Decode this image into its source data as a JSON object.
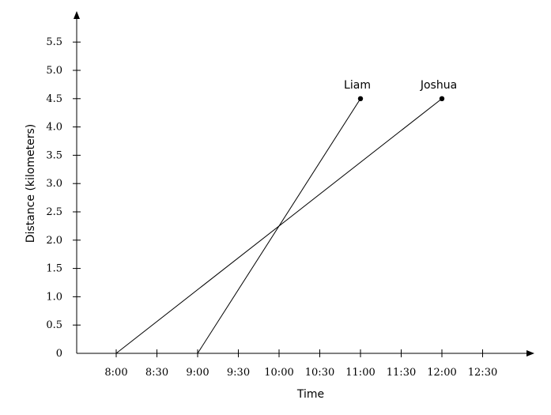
{
  "chart_data": {
    "type": "line",
    "xlabel": "Time",
    "ylabel": "Distance (kilometers)",
    "x_ticks": [
      "8:00",
      "8:30",
      "9:00",
      "9:30",
      "10:00",
      "10:30",
      "11:00",
      "11:30",
      "12:00",
      "12:30"
    ],
    "y_ticks": [
      "0",
      "0.5",
      "1.0",
      "1.5",
      "2.0",
      "2.5",
      "3.0",
      "3.5",
      "4.0",
      "4.5",
      "5.0",
      "5.5"
    ],
    "series": [
      {
        "name": "Liam",
        "x": [
          "9:00",
          "11:00"
        ],
        "y": [
          0,
          4.5
        ]
      },
      {
        "name": "Joshua",
        "x": [
          "8:00",
          "12:00"
        ],
        "y": [
          0,
          4.5
        ]
      }
    ],
    "grid": false
  }
}
